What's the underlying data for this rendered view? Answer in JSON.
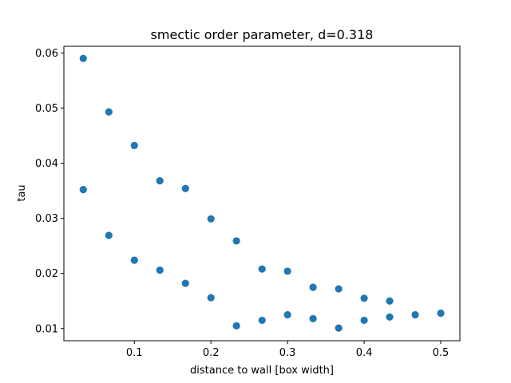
{
  "chart_data": {
    "type": "scatter",
    "title": "smectic order parameter, d=0.318",
    "xlabel": "distance to wall [box width]",
    "ylabel": "tau",
    "xlim": [
      0.008,
      0.525
    ],
    "ylim": [
      0.0078,
      0.0612
    ],
    "xticks": [
      {
        "value": 0.1,
        "label": "0.1"
      },
      {
        "value": 0.2,
        "label": "0.2"
      },
      {
        "value": 0.3,
        "label": "0.3"
      },
      {
        "value": 0.4,
        "label": "0.4"
      },
      {
        "value": 0.5,
        "label": "0.5"
      }
    ],
    "yticks": [
      {
        "value": 0.01,
        "label": "0.01"
      },
      {
        "value": 0.02,
        "label": "0.02"
      },
      {
        "value": 0.03,
        "label": "0.03"
      },
      {
        "value": 0.04,
        "label": "0.04"
      },
      {
        "value": 0.05,
        "label": "0.05"
      },
      {
        "value": 0.06,
        "label": "0.06"
      }
    ],
    "grid": false,
    "legend": "none",
    "marker_color": "#1f77b4",
    "points": [
      {
        "x": 0.0333,
        "y": 0.059
      },
      {
        "x": 0.0333,
        "y": 0.0352
      },
      {
        "x": 0.0667,
        "y": 0.0493
      },
      {
        "x": 0.0667,
        "y": 0.0269
      },
      {
        "x": 0.1,
        "y": 0.0432
      },
      {
        "x": 0.1,
        "y": 0.0224
      },
      {
        "x": 0.1333,
        "y": 0.0368
      },
      {
        "x": 0.1333,
        "y": 0.0206
      },
      {
        "x": 0.1667,
        "y": 0.0354
      },
      {
        "x": 0.1667,
        "y": 0.0182
      },
      {
        "x": 0.2,
        "y": 0.0299
      },
      {
        "x": 0.2,
        "y": 0.0156
      },
      {
        "x": 0.2333,
        "y": 0.0259
      },
      {
        "x": 0.2333,
        "y": 0.0105
      },
      {
        "x": 0.2667,
        "y": 0.0208
      },
      {
        "x": 0.2667,
        "y": 0.0115
      },
      {
        "x": 0.3,
        "y": 0.0204
      },
      {
        "x": 0.3,
        "y": 0.0125
      },
      {
        "x": 0.3333,
        "y": 0.0175
      },
      {
        "x": 0.3333,
        "y": 0.0118
      },
      {
        "x": 0.3667,
        "y": 0.0172
      },
      {
        "x": 0.3667,
        "y": 0.0101
      },
      {
        "x": 0.4,
        "y": 0.0155
      },
      {
        "x": 0.4,
        "y": 0.0115
      },
      {
        "x": 0.4333,
        "y": 0.015
      },
      {
        "x": 0.4333,
        "y": 0.0121
      },
      {
        "x": 0.4667,
        "y": 0.0125
      },
      {
        "x": 0.5,
        "y": 0.0128
      }
    ]
  }
}
